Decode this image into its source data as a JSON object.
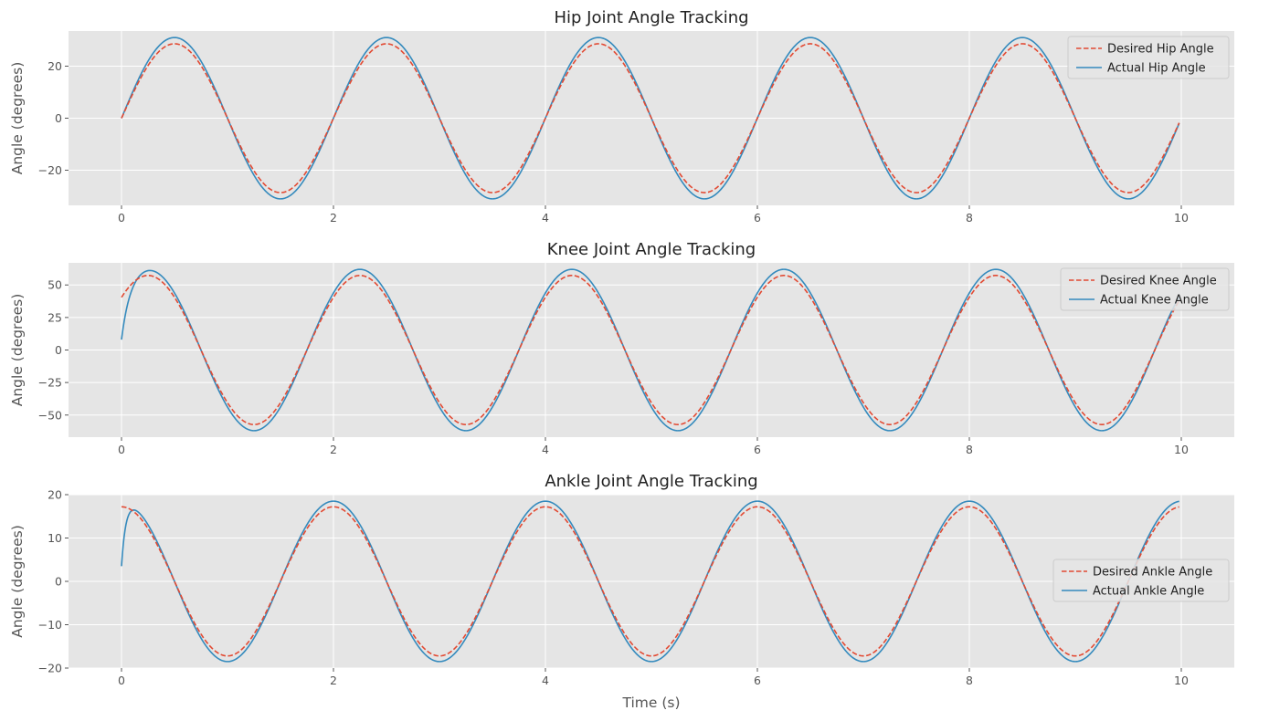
{
  "colors": {
    "desired": "#e24a33",
    "actual": "#348abd",
    "plot_bg": "#e5e5e5",
    "grid": "#ffffff",
    "legend_bg": "#e5e5e5",
    "legend_border": "#cccccc"
  },
  "chart_data": [
    {
      "type": "line",
      "title": "Hip Joint Angle Tracking",
      "xlabel": "",
      "ylabel": "Angle (degrees)",
      "xlim": [
        -0.5,
        10.5
      ],
      "ylim": [
        -33.5,
        33.5
      ],
      "xticks": [
        0,
        2,
        4,
        6,
        8,
        10
      ],
      "xtick_labels": [
        "0",
        "2",
        "4",
        "6",
        "8",
        "10"
      ],
      "yticks": [
        20,
        0,
        -20
      ],
      "ytick_labels": [
        "20",
        "0",
        "−20"
      ],
      "grid": true,
      "legend_placement": "top-right",
      "x_range": [
        0,
        9.98
      ],
      "series": [
        {
          "name": "Desired Hip Angle",
          "style": "dashed",
          "model": "28.6 sin(2π·0.5·t)",
          "amplitude": 28.6,
          "frequency_hz": 0.5,
          "phase_rad": 0
        },
        {
          "name": "Actual Hip Angle",
          "style": "solid",
          "model": "31 sin(2π·0.5·t) with initial transient",
          "amplitude": 31,
          "frequency_hz": 0.5,
          "phase_rad": 0,
          "start_value": 0,
          "transient_tau_s": 0.05
        }
      ]
    },
    {
      "type": "line",
      "title": "Knee Joint Angle Tracking",
      "xlabel": "",
      "ylabel": "Angle (degrees)",
      "xlim": [
        -0.5,
        10.5
      ],
      "ylim": [
        -67,
        67
      ],
      "xticks": [
        0,
        2,
        4,
        6,
        8,
        10
      ],
      "xtick_labels": [
        "0",
        "2",
        "4",
        "6",
        "8",
        "10"
      ],
      "yticks": [
        50,
        25,
        0,
        -25,
        -50
      ],
      "ytick_labels": [
        "50",
        "25",
        "0",
        "−25",
        "−50"
      ],
      "grid": true,
      "legend_placement": "top-right",
      "x_range": [
        0,
        9.98
      ],
      "series": [
        {
          "name": "Desired Knee Angle",
          "style": "dashed",
          "model": "57.3 sin(2π·0.5·t + π/4)",
          "amplitude": 57.3,
          "frequency_hz": 0.5,
          "phase_rad": 0.785398
        },
        {
          "name": "Actual Knee Angle",
          "style": "solid",
          "model": "62 sin(2π·0.5·t + π/4) with initial transient",
          "amplitude": 62,
          "frequency_hz": 0.5,
          "phase_rad": 0.785398,
          "start_value": 8,
          "transient_tau_s": 0.07
        }
      ]
    },
    {
      "type": "line",
      "title": "Ankle Joint Angle Tracking",
      "xlabel": "Time (s)",
      "ylabel": "Angle (degrees)",
      "xlim": [
        -0.5,
        10.5
      ],
      "ylim": [
        -20,
        20
      ],
      "xticks": [
        0,
        2,
        4,
        6,
        8,
        10
      ],
      "xtick_labels": [
        "0",
        "2",
        "4",
        "6",
        "8",
        "10"
      ],
      "yticks": [
        20,
        10,
        0,
        -10,
        -20
      ],
      "ytick_labels": [
        "20",
        "10",
        "0",
        "−10",
        "−20"
      ],
      "grid": true,
      "legend_placement": "center-right",
      "x_range": [
        0,
        9.98
      ],
      "series": [
        {
          "name": "Desired Ankle Angle",
          "style": "dashed",
          "model": "17.2 sin(2π·0.5·t + π/2)",
          "amplitude": 17.2,
          "frequency_hz": 0.5,
          "phase_rad": 1.570796
        },
        {
          "name": "Actual Ankle Angle",
          "style": "solid",
          "model": "18.5 sin(2π·0.5·t + π/2) with initial transient",
          "amplitude": 18.5,
          "frequency_hz": 0.5,
          "phase_rad": 1.570796,
          "start_value": 3.5,
          "transient_tau_s": 0.04
        }
      ]
    }
  ]
}
